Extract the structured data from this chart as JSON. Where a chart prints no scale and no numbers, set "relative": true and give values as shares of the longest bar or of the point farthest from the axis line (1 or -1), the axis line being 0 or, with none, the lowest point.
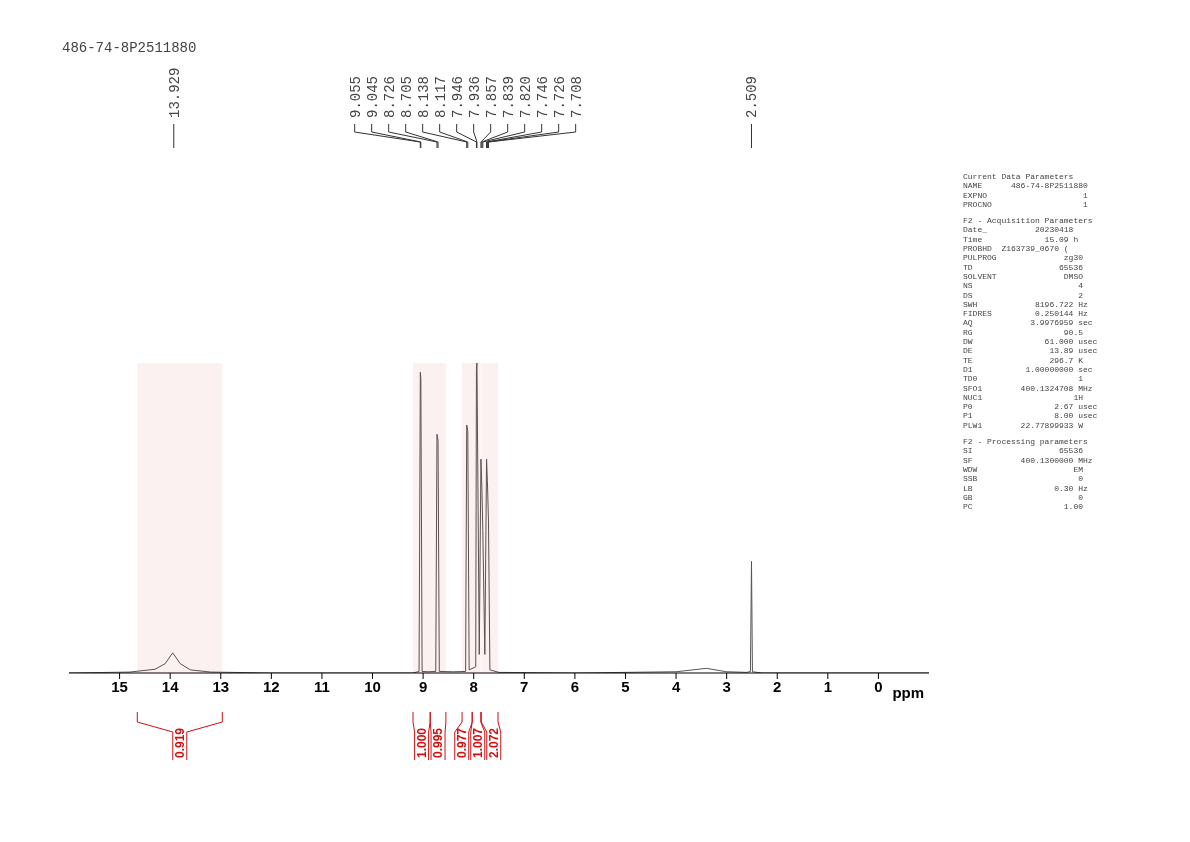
{
  "chart_data": {
    "type": "line",
    "title": "486-74-8P2511880",
    "xlabel": "ppm",
    "relative": true,
    "marker": "none",
    "line_style": "solid",
    "x": [
      16,
      14.8,
      14.3,
      14.1,
      13.95,
      13.8,
      13.6,
      13.2,
      12,
      9.2,
      9.08,
      9.055,
      9.045,
      9.02,
      8.9,
      8.75,
      8.726,
      8.705,
      8.68,
      8.4,
      8.16,
      8.138,
      8.117,
      8.09,
      7.96,
      7.946,
      7.936,
      7.89,
      7.857,
      7.839,
      7.82,
      7.78,
      7.746,
      7.726,
      7.708,
      7.68,
      7.5,
      6,
      4,
      3.4,
      3,
      2.6,
      2.53,
      2.509,
      2.49,
      2.3,
      0,
      -1
    ],
    "series": [
      {
        "color": "#555555",
        "values": [
          0,
          0.003,
          0.012,
          0.03,
          0.065,
          0.03,
          0.01,
          0.003,
          0,
          0,
          0.005,
          0.97,
          0.95,
          0.005,
          0.004,
          0.005,
          0.77,
          0.75,
          0.005,
          0.004,
          0.005,
          0.8,
          0.78,
          0.01,
          0.02,
          0.98,
          1,
          0.06,
          0.69,
          0.6,
          0.46,
          0.06,
          0.69,
          0.6,
          0.49,
          0.01,
          0.002,
          0,
          0.004,
          0.015,
          0.004,
          0.002,
          0.005,
          0.36,
          0.004,
          0,
          0,
          0
        ]
      }
    ],
    "xlim": [
      16,
      -1
    ],
    "xticks": [
      15,
      14,
      13,
      12,
      11,
      10,
      9,
      8,
      7,
      6,
      5,
      4,
      3,
      2,
      1,
      0
    ],
    "bands": [
      {
        "axis": "x",
        "from": 14.65,
        "to": 12.97,
        "label": "0.919",
        "color": "#d01010"
      },
      {
        "axis": "x",
        "from": 9.2,
        "to": 8.86,
        "label": "1.000",
        "color": "#d01010"
      },
      {
        "axis": "x",
        "from": 8.86,
        "to": 8.55,
        "label": "0.995",
        "color": "#d01010"
      },
      {
        "axis": "x",
        "from": 8.23,
        "to": 8.03,
        "label": "0.977",
        "color": "#d01010"
      },
      {
        "axis": "x",
        "from": 8.03,
        "to": 7.86,
        "label": "1.007",
        "color": "#d01010"
      },
      {
        "axis": "x",
        "from": 7.85,
        "to": 7.52,
        "label": "2.072",
        "color": "#d01010"
      }
    ],
    "annotations": [
      {
        "text": "13.929",
        "x": 13.929
      },
      {
        "text": "9.055",
        "x": 9.055
      },
      {
        "text": "9.045",
        "x": 9.045
      },
      {
        "text": "8.726",
        "x": 8.726
      },
      {
        "text": "8.705",
        "x": 8.705
      },
      {
        "text": "8.138",
        "x": 8.138
      },
      {
        "text": "8.117",
        "x": 8.117
      },
      {
        "text": "7.946",
        "x": 7.946
      },
      {
        "text": "7.936",
        "x": 7.936
      },
      {
        "text": "7.857",
        "x": 7.857
      },
      {
        "text": "7.839",
        "x": 7.839
      },
      {
        "text": "7.820",
        "x": 7.82
      },
      {
        "text": "7.746",
        "x": 7.746
      },
      {
        "text": "7.726",
        "x": 7.726
      },
      {
        "text": "7.708",
        "x": 7.708
      },
      {
        "text": "2.509",
        "x": 2.509
      },
      "Current Data Parameters\nNAME      486-74-8P2511880\nEXPNO                    1\nPROCNO                   1",
      "F2 - Acquisition Parameters\nDate_          20230418\nTime             15.09 h\nPROBHD  Z163739_0670 (\nPULPROG              zg30\nTD                  65536\nSOLVENT              DMSO\nNS                      4\nDS                      2\nSWH            8196.722 Hz\nFIDRES         0.250144 Hz\nAQ            3.9976959 sec\nRG                   90.5\nDW               61.000 usec\nDE                13.89 usec\nTE                296.7 K\nD1           1.00000000 sec\nTD0                     1\nSFO1        400.1324708 MHz\nNUC1                   1H\nP0                 2.67 usec\nP1                 8.00 usec\nPLW1        22.77899933 W",
      "F2 - Processing parameters\nSI                  65536\nSF          400.1300000 MHz\nWDW                    EM\nSSB                     0\nLB                 0.30 Hz\nGB                      0\nPC                   1.00"
    ]
  }
}
